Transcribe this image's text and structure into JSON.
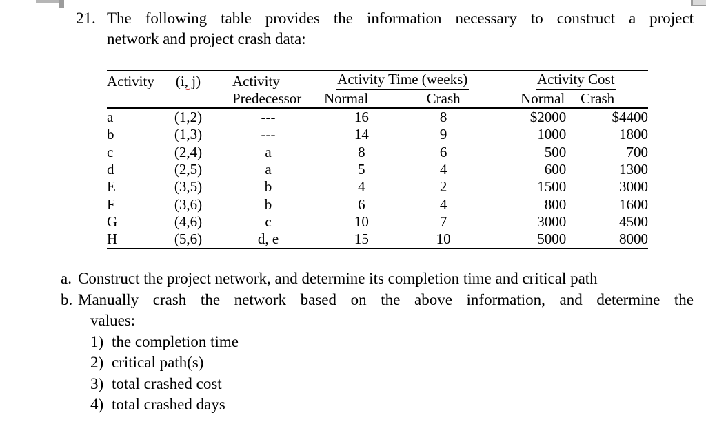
{
  "problem": {
    "number": "21.",
    "line1": "The following table provides the information necessary to construct a project",
    "line2": "network and project crash data:"
  },
  "table": {
    "headers": {
      "activity": "Activity",
      "ij": "(i, j)",
      "predecessor_top": "Activity",
      "predecessor_bottom": "Predecessor",
      "time_group": "Activity Time (weeks)",
      "cost_group": "Activity Cost",
      "time_normal": "Normal",
      "time_crash": "Crash",
      "cost_normal": "Normal",
      "cost_crash": "Crash"
    },
    "rows": [
      {
        "activity": "a",
        "ij": "(1,2)",
        "predecessor": "---",
        "time_normal": "16",
        "time_crash": "8",
        "cost_normal": "$2000",
        "cost_crash": "$4400"
      },
      {
        "activity": "b",
        "ij": "(1,3)",
        "predecessor": "---",
        "time_normal": "14",
        "time_crash": "9",
        "cost_normal": "1000",
        "cost_crash": "1800"
      },
      {
        "activity": "c",
        "ij": "(2,4)",
        "predecessor": "a",
        "time_normal": "8",
        "time_crash": "6",
        "cost_normal": "500",
        "cost_crash": "700"
      },
      {
        "activity": "d",
        "ij": "(2,5)",
        "predecessor": "a",
        "time_normal": "5",
        "time_crash": "4",
        "cost_normal": "600",
        "cost_crash": "1300"
      },
      {
        "activity": "E",
        "ij": "(3,5)",
        "predecessor": "b",
        "time_normal": "4",
        "time_crash": "2",
        "cost_normal": "1500",
        "cost_crash": "3000"
      },
      {
        "activity": "F",
        "ij": "(3,6)",
        "predecessor": "b",
        "time_normal": "6",
        "time_crash": "4",
        "cost_normal": "800",
        "cost_crash": "1600"
      },
      {
        "activity": "G",
        "ij": "(4,6)",
        "predecessor": "c",
        "time_normal": "10",
        "time_crash": "7",
        "cost_normal": "3000",
        "cost_crash": "4500"
      },
      {
        "activity": "H",
        "ij": "(5,6)",
        "predecessor": "d, e",
        "time_normal": "15",
        "time_crash": "10",
        "cost_normal": "5000",
        "cost_crash": "8000"
      }
    ]
  },
  "questions": {
    "a_label": "a.",
    "a_text": "Construct the project network, and determine its completion time and critical path",
    "b_label": "b.",
    "b_line1": "Manually crash the network based on the above information, and determine the",
    "b_line2": "values:",
    "items": [
      {
        "num": "1)",
        "text": "the completion time"
      },
      {
        "num": "2)",
        "text": "critical path(s)"
      },
      {
        "num": "3)",
        "text": "total crashed cost"
      },
      {
        "num": "4)",
        "text": "total crashed days"
      }
    ]
  },
  "decorations": {
    "spellcheck_color": "#cc2222"
  }
}
